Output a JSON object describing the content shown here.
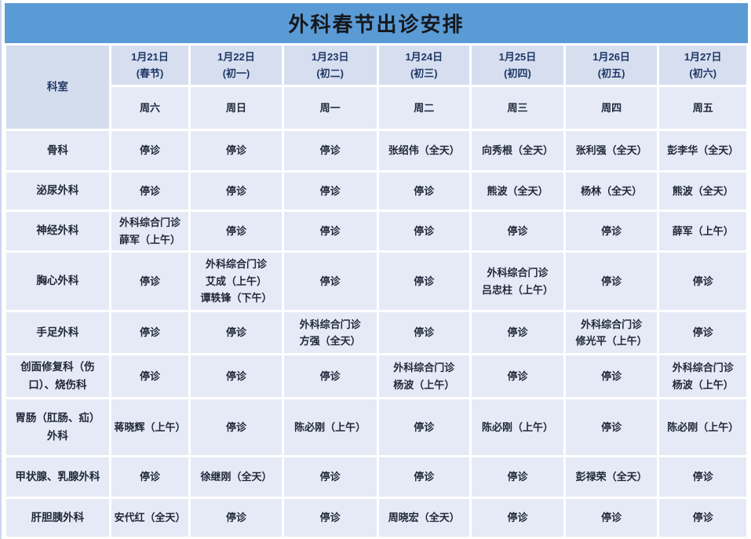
{
  "title": "外科春节出诊安排",
  "colors": {
    "title_bar_bg": "#5b9bd5",
    "title_text": "#15181d",
    "date_header_bg": "#d6def0",
    "light_cell_bg": "#e6eaf6",
    "header_text": "#1f3864",
    "body_text": "#20283a",
    "grid_gap": "#ffffff"
  },
  "table": {
    "corner_label": "科室",
    "columns": [
      {
        "date": "1月21日",
        "lunar": "(春节)",
        "weekday": "周六"
      },
      {
        "date": "1月22日",
        "lunar": "(初一)",
        "weekday": "周日"
      },
      {
        "date": "1月23日",
        "lunar": "(初二)",
        "weekday": "周一"
      },
      {
        "date": "1月24日",
        "lunar": "(初三)",
        "weekday": "周二"
      },
      {
        "date": "1月25日",
        "lunar": "(初四)",
        "weekday": "周三"
      },
      {
        "date": "1月26日",
        "lunar": "(初五)",
        "weekday": "周四"
      },
      {
        "date": "1月27日",
        "lunar": "(初六)",
        "weekday": "周五"
      }
    ],
    "rows": [
      {
        "dept": "骨科",
        "cells": [
          [
            "停诊"
          ],
          [
            "停诊"
          ],
          [
            "停诊"
          ],
          [
            "张绍伟（全天）"
          ],
          [
            "向秀根（全天）"
          ],
          [
            "张利强（全天）"
          ],
          [
            "彭李华（全天）"
          ]
        ]
      },
      {
        "dept": "泌尿外科",
        "cells": [
          [
            "停诊"
          ],
          [
            "停诊"
          ],
          [
            "停诊"
          ],
          [
            "停诊"
          ],
          [
            "熊波（全天）"
          ],
          [
            "杨林（全天）"
          ],
          [
            "熊波（全天）"
          ]
        ]
      },
      {
        "dept": "神经外科",
        "cells": [
          [
            "外科综合门诊",
            "薛军（上午）"
          ],
          [
            "停诊"
          ],
          [
            "停诊"
          ],
          [
            "停诊"
          ],
          [
            "停诊"
          ],
          [
            "停诊"
          ],
          [
            "薛军（上午）"
          ]
        ]
      },
      {
        "dept": "胸心外科",
        "cells": [
          [
            "停诊"
          ],
          [
            "外科综合门诊",
            "艾成（上午）",
            "谭轶锋（下午）"
          ],
          [
            "停诊"
          ],
          [
            "停诊"
          ],
          [
            "外科综合门诊",
            "吕忠柱（上午）"
          ],
          [
            "停诊"
          ],
          [
            "停诊"
          ]
        ]
      },
      {
        "dept": "手足外科",
        "cells": [
          [
            "停诊"
          ],
          [
            "停诊"
          ],
          [
            "外科综合门诊",
            "方强（全天）"
          ],
          [
            "停诊"
          ],
          [
            "停诊"
          ],
          [
            "外科综合门诊",
            "修光平（上午）"
          ],
          [
            "停诊"
          ]
        ]
      },
      {
        "dept": "创面修复科（伤口）、烧伤科",
        "cells": [
          [
            "停诊"
          ],
          [
            "停诊"
          ],
          [
            "停诊"
          ],
          [
            "外科综合门诊",
            "杨波（上午）"
          ],
          [
            "停诊"
          ],
          [
            "停诊"
          ],
          [
            "外科综合门诊",
            "杨波（上午）"
          ]
        ]
      },
      {
        "dept": "胃肠（肛肠、疝）外科",
        "cells": [
          [
            "蒋晓辉（上午）"
          ],
          [
            "停诊"
          ],
          [
            "陈必刚（上午）"
          ],
          [
            "停诊"
          ],
          [
            "陈必刚（上午）"
          ],
          [
            "停诊"
          ],
          [
            "陈必刚（上午）"
          ]
        ]
      },
      {
        "dept": "甲状腺、乳腺外科",
        "cells": [
          [
            "停诊"
          ],
          [
            "徐继刚（全天）"
          ],
          [
            "停诊"
          ],
          [
            "停诊"
          ],
          [
            "停诊"
          ],
          [
            "彭禄荣（全天）"
          ],
          [
            "停诊"
          ]
        ]
      },
      {
        "dept": "肝胆胰外科",
        "cells": [
          [
            "安代红（全天）"
          ],
          [
            "停诊"
          ],
          [
            "停诊"
          ],
          [
            "周晓宏（全天）"
          ],
          [
            "停诊"
          ],
          [
            "停诊"
          ],
          [
            "停诊"
          ]
        ]
      }
    ]
  }
}
